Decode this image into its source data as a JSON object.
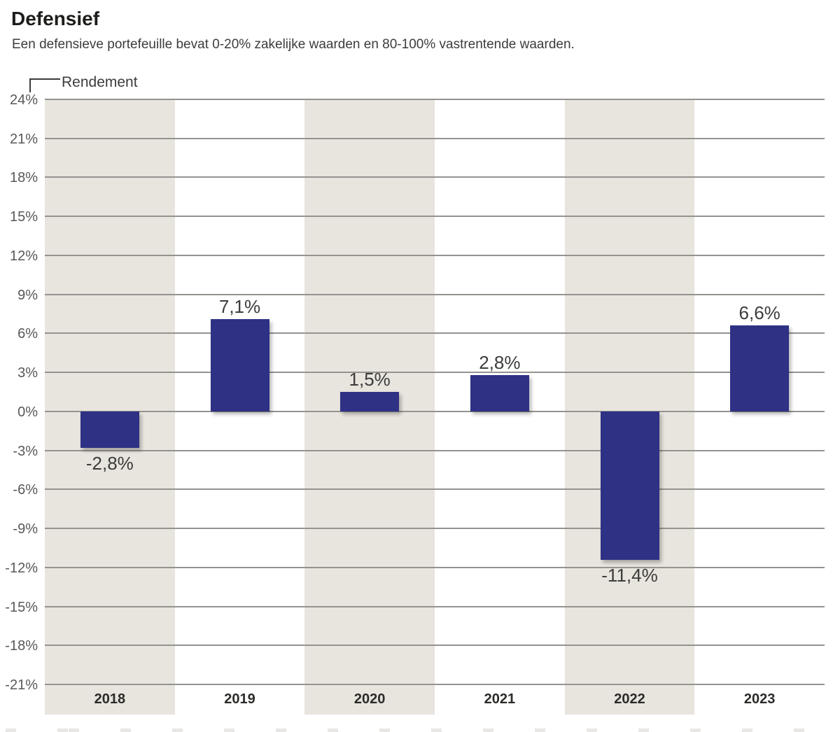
{
  "page": {
    "title": "Defensief",
    "subtitle": "Een defensieve portefeuille bevat 0-20% zakelijke waarden en 80-100% vastrentende waarden."
  },
  "chart_data": {
    "type": "bar",
    "title": "Defensief",
    "subtitle": "Een defensieve portefeuille bevat 0-20% zakelijke waarden en 80-100% vastrentende waarden.",
    "y_axis_caption": "Rendement",
    "categories": [
      "2018",
      "2019",
      "2020",
      "2021",
      "2022",
      "2023"
    ],
    "values": [
      -2.8,
      7.1,
      1.5,
      2.8,
      -11.4,
      6.6
    ],
    "value_labels": [
      "-2,8%",
      "7,1%",
      "1,5%",
      "2,8%",
      "-11,4%",
      "6,6%"
    ],
    "ylim": [
      -21,
      24
    ],
    "ytick_step": 3,
    "ytick_labels": [
      "24%",
      "21%",
      "18%",
      "15%",
      "12%",
      "9%",
      "6%",
      "3%",
      "0%",
      "-3%",
      "-6%",
      "-9%",
      "-12%",
      "-15%",
      "-18%",
      "-21%"
    ],
    "grid": true,
    "legend": "none",
    "shaded_columns": [
      0,
      2,
      4
    ],
    "colors": {
      "bar": "#2e3184",
      "column_shade": "#e8e4de",
      "gridline": "#959390",
      "tick_text": "#58585a",
      "value_text": "#3c3c3b",
      "year_text": "#2b2b29",
      "caption_text": "#3c3c3b",
      "title_text": "#1d1d1b"
    }
  }
}
